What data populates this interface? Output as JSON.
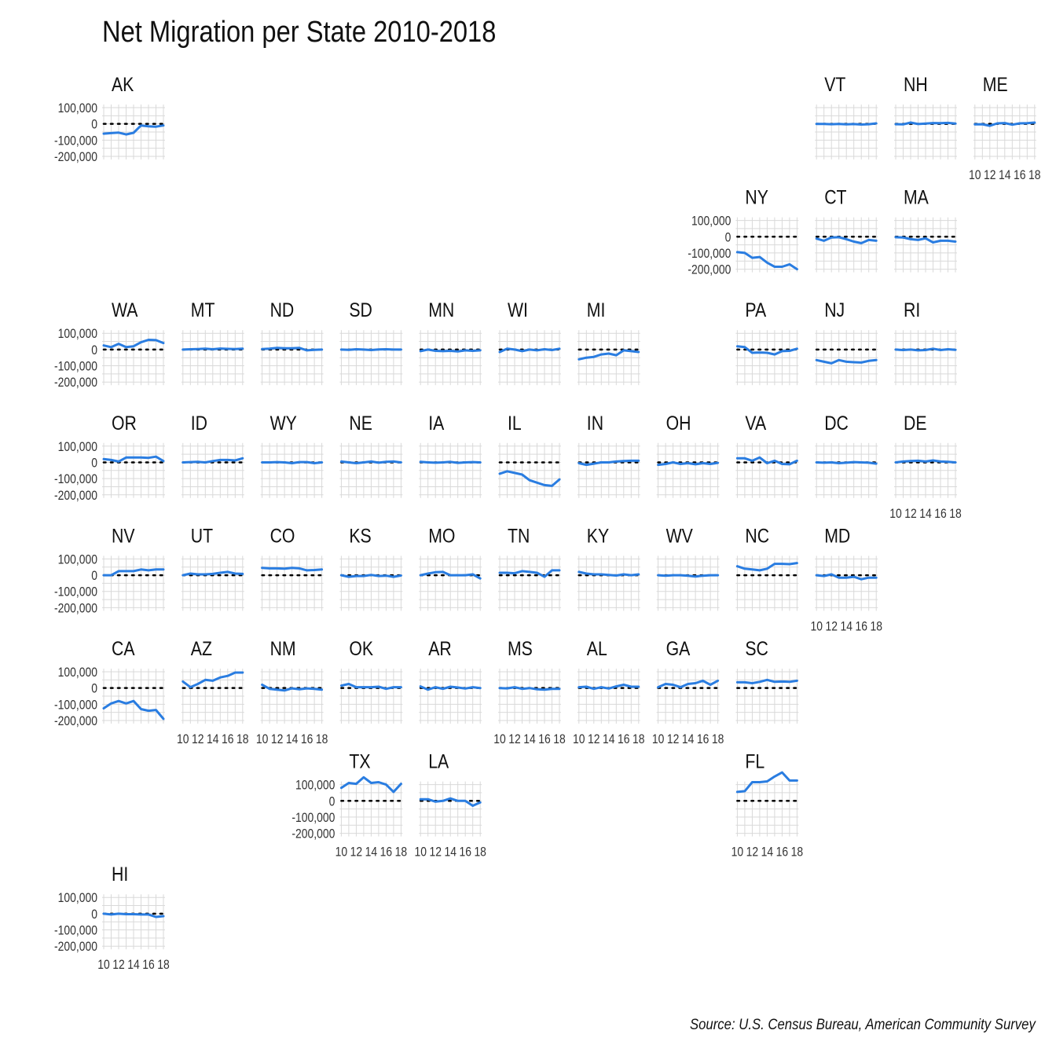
{
  "title": "Net Migration per State 2010-2018",
  "source": "Source: U.S. Census Bureau, American Community Survey",
  "colors": {
    "line": "#2a7de1",
    "zero_line": "#000000",
    "grid": "#d9d9d9"
  },
  "chart_data": {
    "type": "line",
    "layout": "small-multiples state grid map",
    "x": [
      2010,
      2011,
      2012,
      2013,
      2014,
      2015,
      2016,
      2017,
      2018
    ],
    "x_tick_labels": [
      "10",
      "12",
      "14",
      "16",
      "18"
    ],
    "ylim": [
      -200000,
      100000
    ],
    "y_tick_labels": [
      "100,000",
      "0",
      "-100,000",
      "-200,000"
    ],
    "grid": true,
    "zero_reference_line": "dotted",
    "panels": [
      {
        "state": "AK",
        "row": 0,
        "col": 0,
        "y_axis": true,
        "x_axis": false,
        "values": [
          -60000,
          -57000,
          -54000,
          -65000,
          -55000,
          -10000,
          -15000,
          -17000,
          -10000
        ]
      },
      {
        "state": "VT",
        "row": 0,
        "col": 9,
        "y_axis": false,
        "x_axis": false,
        "values": [
          0,
          0,
          -2000,
          0,
          -3000,
          -1000,
          -4000,
          -2000,
          3000
        ]
      },
      {
        "state": "NH",
        "row": 0,
        "col": 10,
        "y_axis": false,
        "x_axis": false,
        "values": [
          -2000,
          -3000,
          8000,
          -1000,
          2000,
          5000,
          4000,
          6000,
          2000
        ]
      },
      {
        "state": "ME",
        "row": 0,
        "col": 11,
        "y_axis": false,
        "x_axis": true,
        "values": [
          -3000,
          -2000,
          -12000,
          3000,
          5000,
          -5000,
          3000,
          4000,
          8000
        ]
      },
      {
        "state": "NY",
        "row": 1,
        "col": 8,
        "y_axis": true,
        "x_axis": false,
        "values": [
          -95000,
          -100000,
          -130000,
          -125000,
          -160000,
          -185000,
          -185000,
          -170000,
          -200000
        ]
      },
      {
        "state": "CT",
        "row": 1,
        "col": 9,
        "y_axis": false,
        "x_axis": false,
        "values": [
          -12000,
          -25000,
          -5000,
          -3000,
          -15000,
          -30000,
          -40000,
          -20000,
          -25000
        ]
      },
      {
        "state": "MA",
        "row": 1,
        "col": 10,
        "y_axis": false,
        "x_axis": false,
        "values": [
          -3000,
          -5000,
          -15000,
          -20000,
          -10000,
          -35000,
          -25000,
          -25000,
          -30000
        ]
      },
      {
        "state": "WA",
        "row": 2,
        "col": 0,
        "y_axis": true,
        "x_axis": false,
        "values": [
          25000,
          15000,
          35000,
          15000,
          20000,
          45000,
          60000,
          58000,
          40000
        ]
      },
      {
        "state": "MT",
        "row": 2,
        "col": 1,
        "y_axis": false,
        "x_axis": false,
        "values": [
          0,
          2000,
          3000,
          5000,
          2000,
          6000,
          4000,
          3000,
          5000
        ]
      },
      {
        "state": "ND",
        "row": 2,
        "col": 2,
        "y_axis": false,
        "x_axis": false,
        "values": [
          3000,
          5000,
          10000,
          8000,
          8000,
          10000,
          -5000,
          -2000,
          0
        ]
      },
      {
        "state": "SD",
        "row": 2,
        "col": 3,
        "y_axis": false,
        "x_axis": false,
        "values": [
          0,
          -2000,
          2000,
          0,
          -3000,
          1000,
          2000,
          0,
          0
        ]
      },
      {
        "state": "MN",
        "row": 2,
        "col": 4,
        "y_axis": false,
        "x_axis": false,
        "values": [
          -10000,
          0,
          -8000,
          -10000,
          -8000,
          -12000,
          -5000,
          -8000,
          -5000
        ]
      },
      {
        "state": "WI",
        "row": 2,
        "col": 5,
        "y_axis": false,
        "x_axis": false,
        "values": [
          -15000,
          5000,
          0,
          -10000,
          0,
          -5000,
          2000,
          -3000,
          5000
        ]
      },
      {
        "state": "MI",
        "row": 2,
        "col": 6,
        "y_axis": false,
        "x_axis": false,
        "values": [
          -60000,
          -50000,
          -45000,
          -30000,
          -25000,
          -35000,
          -5000,
          -10000,
          -15000
        ]
      },
      {
        "state": "PA",
        "row": 2,
        "col": 8,
        "y_axis": false,
        "x_axis": false,
        "values": [
          20000,
          15000,
          -20000,
          -18000,
          -20000,
          -30000,
          -10000,
          -8000,
          5000
        ]
      },
      {
        "state": "NJ",
        "row": 2,
        "col": 9,
        "y_axis": false,
        "x_axis": false,
        "values": [
          -65000,
          -75000,
          -85000,
          -65000,
          -75000,
          -78000,
          -80000,
          -70000,
          -65000
        ]
      },
      {
        "state": "RI",
        "row": 2,
        "col": 10,
        "y_axis": false,
        "x_axis": false,
        "values": [
          0,
          -3000,
          0,
          -5000,
          -3000,
          5000,
          -3000,
          2000,
          -2000
        ]
      },
      {
        "state": "OR",
        "row": 3,
        "col": 0,
        "y_axis": true,
        "x_axis": false,
        "values": [
          20000,
          15000,
          5000,
          30000,
          30000,
          30000,
          28000,
          35000,
          8000
        ]
      },
      {
        "state": "ID",
        "row": 3,
        "col": 1,
        "y_axis": false,
        "x_axis": false,
        "values": [
          0,
          2000,
          3000,
          0,
          8000,
          15000,
          15000,
          12000,
          25000
        ]
      },
      {
        "state": "WY",
        "row": 3,
        "col": 2,
        "y_axis": false,
        "x_axis": false,
        "values": [
          0,
          0,
          2000,
          0,
          -5000,
          2000,
          2000,
          -5000,
          0
        ]
      },
      {
        "state": "NE",
        "row": 3,
        "col": 3,
        "y_axis": false,
        "x_axis": false,
        "values": [
          5000,
          0,
          -5000,
          0,
          5000,
          -2000,
          3000,
          5000,
          0
        ]
      },
      {
        "state": "IA",
        "row": 3,
        "col": 4,
        "y_axis": false,
        "x_axis": false,
        "values": [
          3000,
          0,
          -2000,
          0,
          3000,
          -3000,
          0,
          2000,
          0
        ]
      },
      {
        "state": "IL",
        "row": 3,
        "col": 5,
        "y_axis": false,
        "x_axis": false,
        "values": [
          -70000,
          -55000,
          -65000,
          -75000,
          -110000,
          -125000,
          -140000,
          -145000,
          -105000
        ]
      },
      {
        "state": "IN",
        "row": 3,
        "col": 6,
        "y_axis": false,
        "x_axis": false,
        "values": [
          -5000,
          -15000,
          -8000,
          0,
          0,
          5000,
          8000,
          10000,
          10000
        ]
      },
      {
        "state": "OH",
        "row": 3,
        "col": 7,
        "y_axis": false,
        "x_axis": false,
        "values": [
          -15000,
          -10000,
          0,
          -10000,
          -5000,
          -12000,
          -5000,
          -10000,
          -3000
        ]
      },
      {
        "state": "VA",
        "row": 3,
        "col": 8,
        "y_axis": false,
        "x_axis": false,
        "values": [
          25000,
          25000,
          10000,
          30000,
          -5000,
          10000,
          -10000,
          -12000,
          10000
        ]
      },
      {
        "state": "DC",
        "row": 3,
        "col": 9,
        "y_axis": false,
        "x_axis": false,
        "values": [
          0,
          -2000,
          0,
          -5000,
          -2000,
          2000,
          0,
          -2000,
          -8000
        ]
      },
      {
        "state": "DE",
        "row": 3,
        "col": 10,
        "y_axis": false,
        "x_axis": true,
        "values": [
          0,
          5000,
          8000,
          10000,
          5000,
          12000,
          5000,
          3000,
          0
        ]
      },
      {
        "state": "NV",
        "row": 4,
        "col": 0,
        "y_axis": true,
        "x_axis": false,
        "values": [
          0,
          0,
          25000,
          25000,
          25000,
          35000,
          30000,
          35000,
          35000
        ]
      },
      {
        "state": "UT",
        "row": 4,
        "col": 1,
        "y_axis": false,
        "x_axis": false,
        "values": [
          0,
          10000,
          5000,
          5000,
          8000,
          15000,
          20000,
          10000,
          8000
        ]
      },
      {
        "state": "CO",
        "row": 4,
        "col": 2,
        "y_axis": false,
        "x_axis": false,
        "values": [
          45000,
          42000,
          42000,
          40000,
          45000,
          42000,
          30000,
          32000,
          35000
        ]
      },
      {
        "state": "KS",
        "row": 4,
        "col": 3,
        "y_axis": false,
        "x_axis": false,
        "values": [
          0,
          -10000,
          -5000,
          -5000,
          2000,
          -5000,
          -3000,
          -10000,
          -2000
        ]
      },
      {
        "state": "MO",
        "row": 4,
        "col": 4,
        "y_axis": false,
        "x_axis": false,
        "values": [
          0,
          10000,
          18000,
          20000,
          0,
          0,
          0,
          5000,
          -20000
        ]
      },
      {
        "state": "TN",
        "row": 4,
        "col": 5,
        "y_axis": false,
        "x_axis": false,
        "values": [
          15000,
          15000,
          12000,
          25000,
          20000,
          15000,
          -10000,
          30000,
          30000
        ]
      },
      {
        "state": "KY",
        "row": 4,
        "col": 6,
        "y_axis": false,
        "x_axis": false,
        "values": [
          20000,
          10000,
          5000,
          5000,
          2000,
          -2000,
          5000,
          0,
          5000
        ]
      },
      {
        "state": "WV",
        "row": 4,
        "col": 7,
        "y_axis": false,
        "x_axis": false,
        "values": [
          0,
          -3000,
          0,
          0,
          -3000,
          -8000,
          -3000,
          0,
          0
        ]
      },
      {
        "state": "NC",
        "row": 4,
        "col": 8,
        "y_axis": false,
        "x_axis": false,
        "values": [
          55000,
          40000,
          35000,
          30000,
          40000,
          70000,
          70000,
          68000,
          75000
        ]
      },
      {
        "state": "MD",
        "row": 4,
        "col": 9,
        "y_axis": false,
        "x_axis": true,
        "values": [
          0,
          -5000,
          5000,
          -15000,
          -15000,
          -10000,
          -25000,
          -15000,
          -15000
        ]
      },
      {
        "state": "CA",
        "row": 5,
        "col": 0,
        "y_axis": true,
        "x_axis": false,
        "values": [
          -125000,
          -95000,
          -80000,
          -95000,
          -80000,
          -130000,
          -140000,
          -135000,
          -190000
        ]
      },
      {
        "state": "AZ",
        "row": 5,
        "col": 1,
        "y_axis": false,
        "x_axis": true,
        "values": [
          40000,
          5000,
          25000,
          50000,
          45000,
          65000,
          75000,
          95000,
          95000
        ]
      },
      {
        "state": "NM",
        "row": 5,
        "col": 2,
        "y_axis": false,
        "x_axis": true,
        "values": [
          20000,
          -5000,
          -10000,
          -15000,
          -2000,
          -8000,
          -2000,
          -5000,
          -10000
        ]
      },
      {
        "state": "OK",
        "row": 5,
        "col": 3,
        "y_axis": false,
        "x_axis": false,
        "values": [
          15000,
          25000,
          5000,
          5000,
          5000,
          8000,
          -5000,
          5000,
          5000
        ]
      },
      {
        "state": "AR",
        "row": 5,
        "col": 4,
        "y_axis": false,
        "x_axis": false,
        "values": [
          10000,
          -10000,
          5000,
          -5000,
          8000,
          3000,
          -3000,
          5000,
          0
        ]
      },
      {
        "state": "MS",
        "row": 5,
        "col": 5,
        "y_axis": false,
        "x_axis": true,
        "values": [
          0,
          -2000,
          5000,
          -5000,
          0,
          -8000,
          -10000,
          -5000,
          -5000
        ]
      },
      {
        "state": "AL",
        "row": 5,
        "col": 6,
        "y_axis": false,
        "x_axis": true,
        "values": [
          5000,
          8000,
          -5000,
          5000,
          -3000,
          10000,
          20000,
          8000,
          8000
        ]
      },
      {
        "state": "GA",
        "row": 5,
        "col": 7,
        "y_axis": false,
        "x_axis": true,
        "values": [
          5000,
          25000,
          20000,
          5000,
          25000,
          30000,
          45000,
          20000,
          45000
        ]
      },
      {
        "state": "SC",
        "row": 5,
        "col": 8,
        "y_axis": false,
        "x_axis": false,
        "values": [
          35000,
          35000,
          30000,
          38000,
          50000,
          38000,
          40000,
          38000,
          45000
        ]
      },
      {
        "state": "TX",
        "row": 6,
        "col": 3,
        "y_axis": true,
        "x_axis": true,
        "values": [
          80000,
          110000,
          105000,
          145000,
          110000,
          115000,
          100000,
          55000,
          105000
        ]
      },
      {
        "state": "LA",
        "row": 6,
        "col": 4,
        "y_axis": false,
        "x_axis": true,
        "values": [
          10000,
          10000,
          -5000,
          0,
          15000,
          0,
          0,
          -30000,
          -10000
        ]
      },
      {
        "state": "FL",
        "row": 6,
        "col": 8,
        "y_axis": false,
        "x_axis": true,
        "values": [
          55000,
          60000,
          115000,
          115000,
          120000,
          150000,
          175000,
          125000,
          125000
        ]
      },
      {
        "state": "HI",
        "row": 7,
        "col": 0,
        "y_axis": true,
        "x_axis": true,
        "values": [
          0,
          -5000,
          0,
          -3000,
          -3000,
          -5000,
          -5000,
          -20000,
          -15000
        ]
      }
    ]
  }
}
